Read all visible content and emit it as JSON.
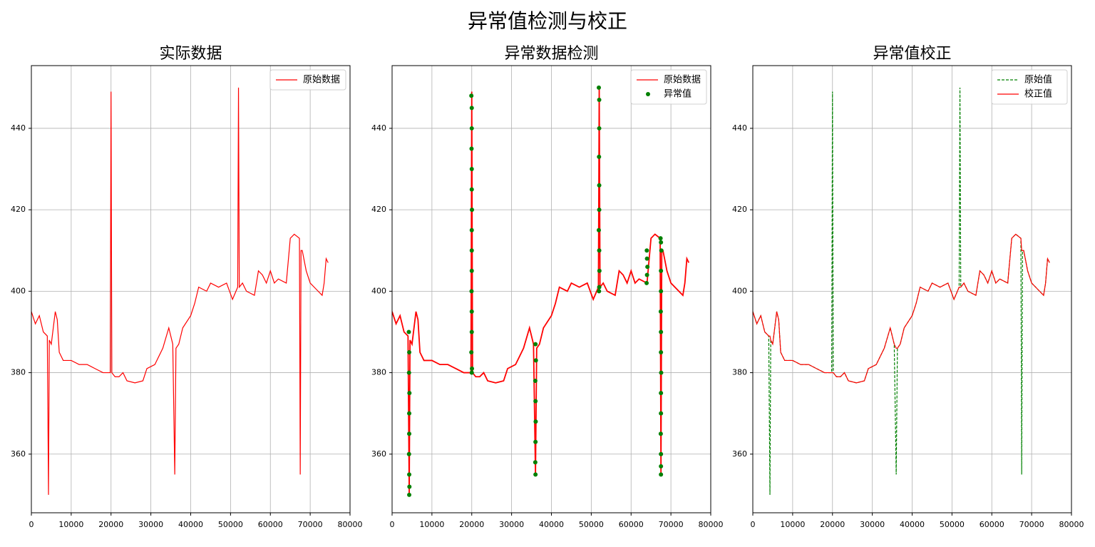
{
  "title": "异常值检测与校正",
  "chart_data": [
    {
      "type": "line",
      "title": "实际数据",
      "x": [
        0,
        1000,
        2000,
        3000,
        4000,
        4300,
        4500,
        5000,
        6000,
        6500,
        7000,
        8000,
        10000,
        12000,
        14000,
        16000,
        18000,
        19800,
        20000,
        20200,
        21000,
        22000,
        23000,
        24000,
        26000,
        28000,
        29000,
        31000,
        33000,
        34500,
        35500,
        36000,
        36300,
        37000,
        38000,
        40000,
        41000,
        42000,
        44000,
        45000,
        47000,
        49000,
        50500,
        51800,
        52000,
        52200,
        53000,
        54000,
        56000,
        57000,
        58000,
        59000,
        60000,
        61000,
        62000,
        64000,
        65000,
        66000,
        67300,
        67500,
        67700,
        68000,
        69000,
        70000,
        72000,
        73000,
        73500,
        74000,
        74500
      ],
      "series": [
        {
          "name": "原始数据",
          "color": "#ff0000",
          "style": "solid",
          "values": [
            395,
            392,
            394,
            390,
            389,
            350,
            388,
            387,
            395,
            393,
            385,
            383,
            383,
            382,
            382,
            381,
            380,
            380,
            449,
            380,
            379,
            379,
            380,
            378,
            377.5,
            378,
            381,
            382,
            386,
            391,
            387,
            355,
            386,
            387,
            391,
            394,
            397,
            401,
            400,
            402,
            401,
            402,
            398,
            401,
            450,
            401,
            402,
            400,
            399,
            405,
            404,
            402,
            405,
            402,
            403,
            402,
            413,
            414,
            413,
            355,
            410,
            410,
            405,
            402,
            400,
            399,
            402,
            408,
            407
          ]
        }
      ],
      "xlim": [
        0,
        80000
      ],
      "xticks": [
        0,
        10000,
        20000,
        30000,
        40000,
        50000,
        60000,
        70000,
        80000
      ],
      "ylim": [
        345.6,
        455.4
      ],
      "yticks": [
        360,
        380,
        400,
        420,
        440
      ],
      "grid": true,
      "legend": "upper right"
    },
    {
      "type": "line",
      "title": "异常数据检测",
      "x": [
        0,
        1000,
        2000,
        3000,
        4000,
        4300,
        4500,
        5000,
        6000,
        6500,
        7000,
        8000,
        10000,
        12000,
        14000,
        16000,
        18000,
        19800,
        20000,
        20200,
        21000,
        22000,
        23000,
        24000,
        26000,
        28000,
        29000,
        31000,
        33000,
        34500,
        35500,
        36000,
        36300,
        37000,
        38000,
        40000,
        41000,
        42000,
        44000,
        45000,
        47000,
        49000,
        50500,
        51800,
        52000,
        52200,
        53000,
        54000,
        56000,
        57000,
        58000,
        59000,
        60000,
        61000,
        62000,
        64000,
        65000,
        66000,
        67300,
        67500,
        67700,
        68000,
        69000,
        70000,
        72000,
        73000,
        73500,
        74000,
        74500
      ],
      "series": [
        {
          "name": "原始数据",
          "color": "#ff0000",
          "style": "solid",
          "values": [
            395,
            392,
            394,
            390,
            389,
            350,
            388,
            387,
            395,
            393,
            385,
            383,
            383,
            382,
            382,
            381,
            380,
            380,
            449,
            380,
            379,
            379,
            380,
            378,
            377.5,
            378,
            381,
            382,
            386,
            391,
            387,
            355,
            386,
            387,
            391,
            394,
            397,
            401,
            400,
            402,
            401,
            402,
            398,
            401,
            450,
            401,
            402,
            400,
            399,
            405,
            404,
            402,
            405,
            402,
            403,
            402,
            413,
            414,
            413,
            355,
            410,
            410,
            405,
            402,
            400,
            399,
            402,
            408,
            407
          ]
        },
        {
          "name": "异常值",
          "color": "#008000",
          "style": "markers",
          "x": [
            4200,
            4300,
            4250,
            4350,
            4300,
            4300,
            4250,
            4300,
            4350,
            4300,
            19900,
            20000,
            20000,
            19950,
            20000,
            20000,
            20050,
            20000,
            20000,
            20000,
            19950,
            20000,
            20000,
            19900,
            20050,
            20000,
            36000,
            36100,
            35950,
            36000,
            36050,
            36000,
            35950,
            36000,
            51900,
            52000,
            52000,
            51950,
            52000,
            52000,
            51900,
            52000,
            52050,
            52000,
            51950,
            63900,
            64000,
            64100,
            64000,
            63950,
            67400,
            67500,
            67600,
            67500,
            67500,
            67450,
            67500,
            67500,
            67550,
            67500,
            67500,
            67450,
            67500,
            67500,
            67500
          ],
          "values": [
            390,
            385,
            380,
            375,
            370,
            365,
            360,
            355,
            352,
            350,
            448,
            445,
            440,
            435,
            430,
            425,
            420,
            415,
            410,
            405,
            400,
            395,
            390,
            385,
            381,
            380,
            387,
            383,
            378,
            373,
            368,
            363,
            358,
            355,
            450,
            447,
            440,
            433,
            426,
            420,
            415,
            410,
            405,
            401,
            400,
            402,
            404,
            406,
            408,
            410,
            413,
            412,
            410,
            405,
            400,
            395,
            390,
            385,
            380,
            375,
            370,
            365,
            360,
            357,
            355
          ]
        }
      ],
      "xlim": [
        0,
        80000
      ],
      "xticks": [
        0,
        10000,
        20000,
        30000,
        40000,
        50000,
        60000,
        70000,
        80000
      ],
      "ylim": [
        345.6,
        455.4
      ],
      "yticks": [
        360,
        380,
        400,
        420,
        440
      ],
      "grid": true,
      "legend": "upper right"
    },
    {
      "type": "line",
      "title": "异常值校正",
      "x": [
        0,
        1000,
        2000,
        3000,
        4000,
        4300,
        4500,
        5000,
        6000,
        6500,
        7000,
        8000,
        10000,
        12000,
        14000,
        16000,
        18000,
        19800,
        20000,
        20200,
        21000,
        22000,
        23000,
        24000,
        26000,
        28000,
        29000,
        31000,
        33000,
        34500,
        35500,
        36000,
        36300,
        37000,
        38000,
        40000,
        41000,
        42000,
        44000,
        45000,
        47000,
        49000,
        50500,
        51800,
        52000,
        52200,
        53000,
        54000,
        56000,
        57000,
        58000,
        59000,
        60000,
        61000,
        62000,
        64000,
        65000,
        66000,
        67300,
        67500,
        67700,
        68000,
        69000,
        70000,
        72000,
        73000,
        73500,
        74000,
        74500
      ],
      "series": [
        {
          "name": "原始值",
          "color": "#008000",
          "style": "dashed",
          "values": [
            395,
            392,
            394,
            390,
            389,
            350,
            388,
            387,
            395,
            393,
            385,
            383,
            383,
            382,
            382,
            381,
            380,
            380,
            449,
            380,
            379,
            379,
            380,
            378,
            377.5,
            378,
            381,
            382,
            386,
            391,
            387,
            355,
            386,
            387,
            391,
            394,
            397,
            401,
            400,
            402,
            401,
            402,
            398,
            401,
            450,
            401,
            402,
            400,
            399,
            405,
            404,
            402,
            405,
            402,
            403,
            402,
            413,
            414,
            413,
            355,
            410,
            410,
            405,
            402,
            400,
            399,
            402,
            408,
            407
          ]
        },
        {
          "name": "校正值",
          "color": "#ff0000",
          "style": "solid",
          "values": [
            395,
            392,
            394,
            390,
            389,
            389,
            388,
            387,
            395,
            393,
            385,
            383,
            383,
            382,
            382,
            381,
            380,
            380,
            380,
            380,
            379,
            379,
            380,
            378,
            377.5,
            378,
            381,
            382,
            386,
            391,
            387,
            386,
            386,
            387,
            391,
            394,
            397,
            401,
            400,
            402,
            401,
            402,
            398,
            401,
            401,
            401,
            402,
            400,
            399,
            405,
            404,
            402,
            405,
            402,
            403,
            402,
            413,
            414,
            413,
            410,
            410,
            410,
            405,
            402,
            400,
            399,
            402,
            408,
            407
          ]
        }
      ],
      "xlim": [
        0,
        80000
      ],
      "xticks": [
        0,
        10000,
        20000,
        30000,
        40000,
        50000,
        60000,
        70000,
        80000
      ],
      "ylim": [
        345.6,
        455.4
      ],
      "yticks": [
        360,
        380,
        400,
        420,
        440
      ],
      "grid": true,
      "legend": "upper right"
    }
  ]
}
